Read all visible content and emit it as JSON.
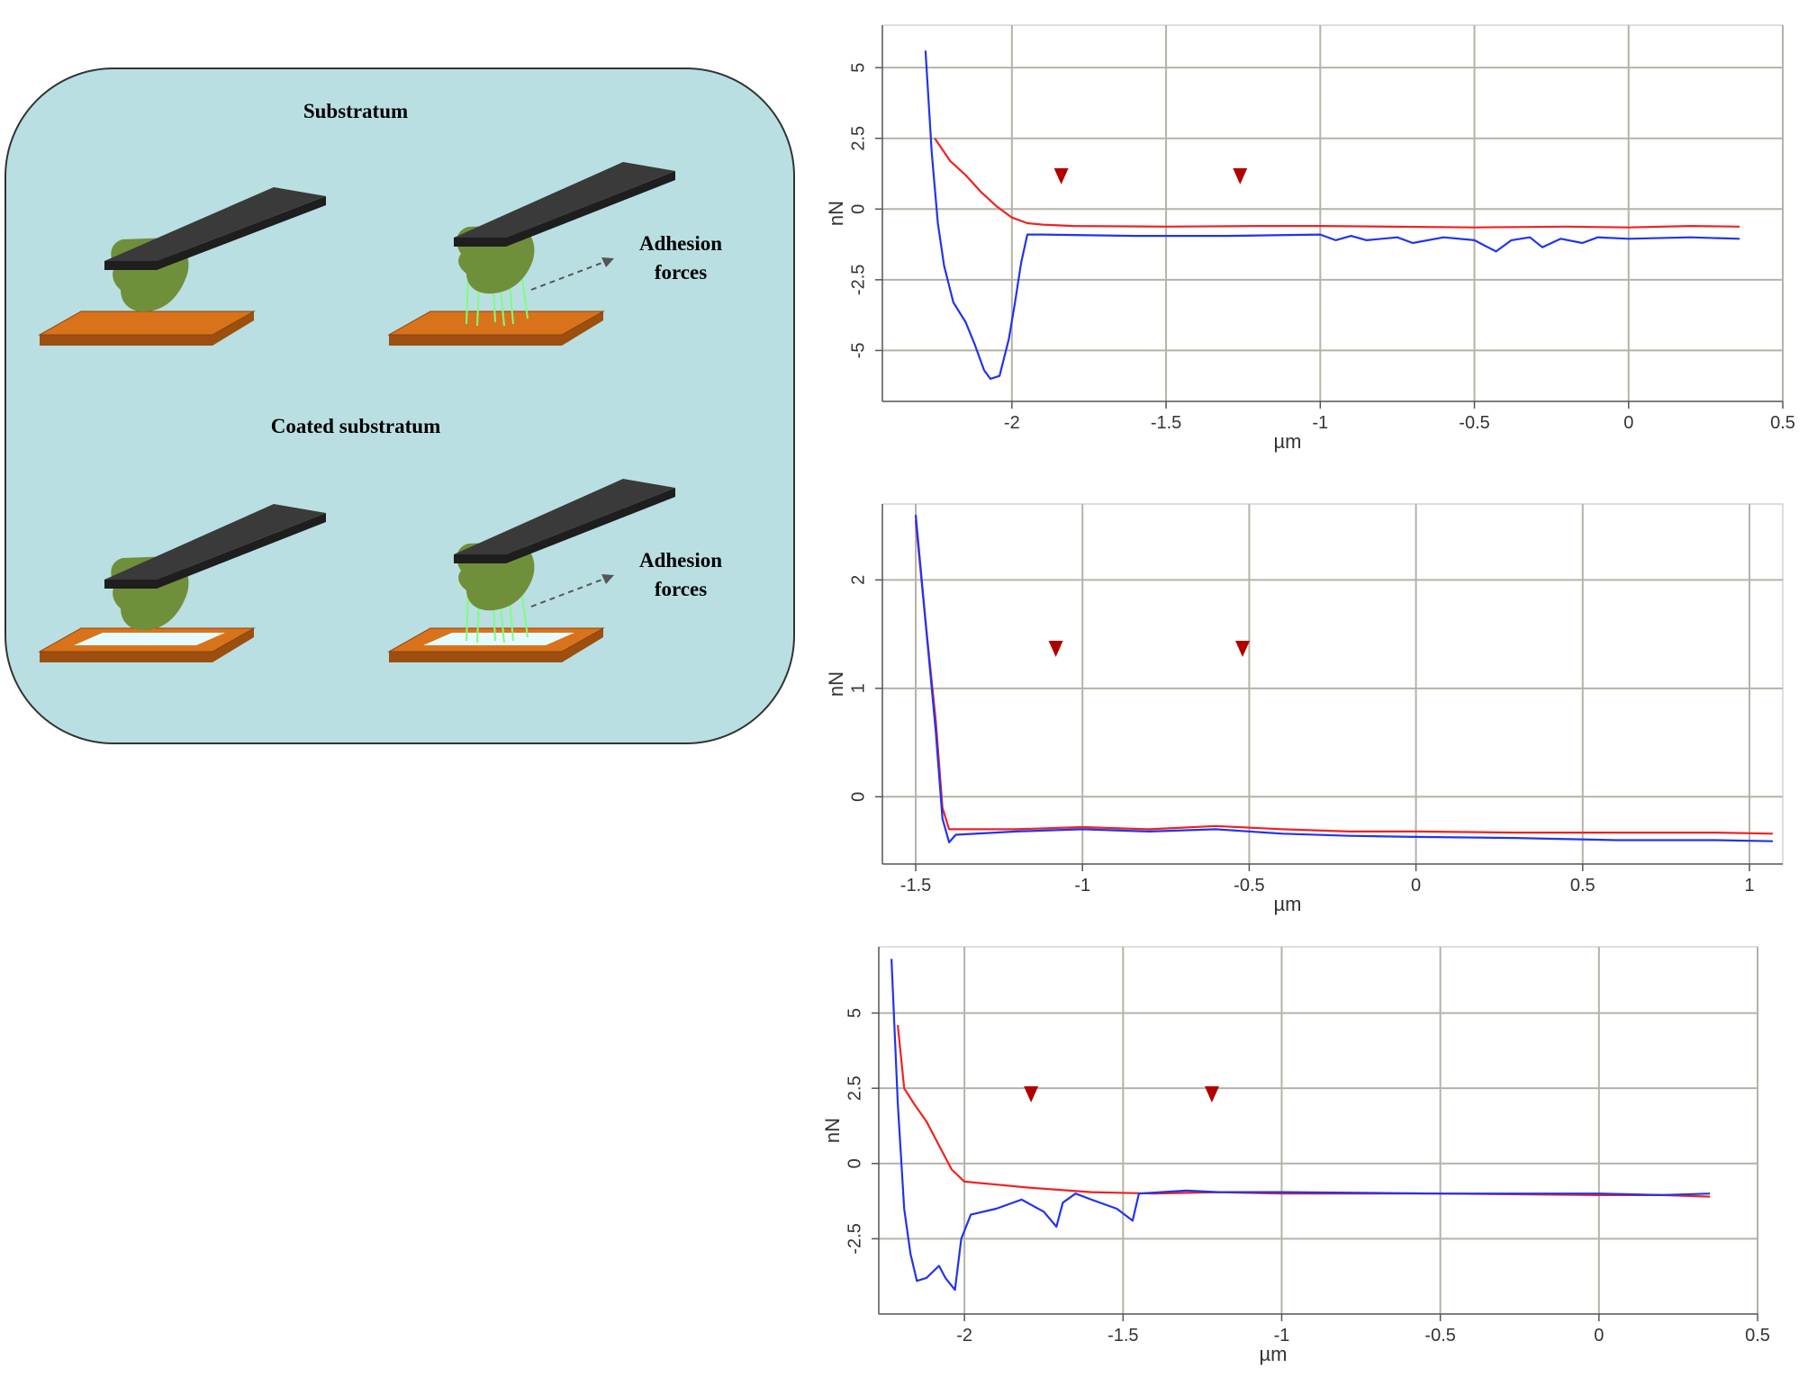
{
  "diagram": {
    "substratum_label": "Substratum",
    "coated_label": "Coated substratum",
    "adhesion_line1": "Adhesion",
    "adhesion_line2": "forces",
    "colors": {
      "panel_bg": "#b9dfe2",
      "cantilever": "#3a3a3a",
      "cell": "#6f8f3a",
      "substrate": "#d9731b",
      "coating": "#e6fbff",
      "fibers": "#7dff7d"
    }
  },
  "chart_data": [
    {
      "type": "line",
      "xlabel": "µm",
      "ylabel": "nN",
      "xlim": [
        -2.42,
        0.5
      ],
      "ylim": [
        -6.8,
        6.5
      ],
      "xticks": [
        -2,
        -1.5,
        -1,
        -0.5,
        0,
        0.5
      ],
      "xtick_labels": [
        "-2",
        "-1.5",
        "-1",
        "-0.5",
        "0",
        "0.5"
      ],
      "yticks": [
        -5,
        -2.5,
        0,
        2.5,
        5
      ],
      "ytick_labels": [
        "-5",
        "-2.5",
        "0",
        "2.5",
        "5"
      ],
      "grid": true,
      "markers_x": [
        -1.84,
        -1.26
      ],
      "series": [
        {
          "color": "#ee2222",
          "points": [
            [
              -2.25,
              2.5
            ],
            [
              -2.2,
              1.7
            ],
            [
              -2.15,
              1.2
            ],
            [
              -2.1,
              0.6
            ],
            [
              -2.05,
              0.1
            ],
            [
              -2.0,
              -0.3
            ],
            [
              -1.95,
              -0.5
            ],
            [
              -1.9,
              -0.55
            ],
            [
              -1.8,
              -0.6
            ],
            [
              -1.5,
              -0.62
            ],
            [
              -1.2,
              -0.6
            ],
            [
              -1.0,
              -0.6
            ],
            [
              -0.5,
              -0.65
            ],
            [
              -0.2,
              -0.62
            ],
            [
              0.0,
              -0.65
            ],
            [
              0.2,
              -0.6
            ],
            [
              0.36,
              -0.62
            ]
          ]
        },
        {
          "color": "#2233ee",
          "points": [
            [
              -2.28,
              5.6
            ],
            [
              -2.26,
              2.0
            ],
            [
              -2.24,
              -0.5
            ],
            [
              -2.22,
              -2.0
            ],
            [
              -2.19,
              -3.3
            ],
            [
              -2.15,
              -4.0
            ],
            [
              -2.12,
              -4.8
            ],
            [
              -2.09,
              -5.7
            ],
            [
              -2.07,
              -6.0
            ],
            [
              -2.04,
              -5.9
            ],
            [
              -2.01,
              -4.6
            ],
            [
              -1.99,
              -3.3
            ],
            [
              -1.97,
              -1.9
            ],
            [
              -1.95,
              -0.9
            ],
            [
              -1.9,
              -0.9
            ],
            [
              -1.6,
              -0.95
            ],
            [
              -1.3,
              -0.95
            ],
            [
              -1.0,
              -0.9
            ],
            [
              -0.95,
              -1.1
            ],
            [
              -0.9,
              -0.95
            ],
            [
              -0.85,
              -1.1
            ],
            [
              -0.75,
              -1.0
            ],
            [
              -0.7,
              -1.2
            ],
            [
              -0.6,
              -1.0
            ],
            [
              -0.5,
              -1.1
            ],
            [
              -0.43,
              -1.5
            ],
            [
              -0.38,
              -1.1
            ],
            [
              -0.32,
              -1.0
            ],
            [
              -0.28,
              -1.35
            ],
            [
              -0.22,
              -1.05
            ],
            [
              -0.15,
              -1.2
            ],
            [
              -0.1,
              -1.0
            ],
            [
              0.0,
              -1.05
            ],
            [
              0.2,
              -1.0
            ],
            [
              0.36,
              -1.05
            ]
          ]
        }
      ]
    },
    {
      "type": "line",
      "xlabel": "µm",
      "ylabel": "nN",
      "xlim": [
        -1.6,
        1.1
      ],
      "ylim": [
        -0.62,
        2.7
      ],
      "xticks": [
        -1.5,
        -1,
        -0.5,
        0,
        0.5,
        1
      ],
      "xtick_labels": [
        "-1.5",
        "-1",
        "-0.5",
        "0",
        "0.5",
        "1"
      ],
      "yticks": [
        0,
        1,
        2
      ],
      "ytick_labels": [
        "0",
        "1",
        "2"
      ],
      "grid": true,
      "markers_x": [
        -1.08,
        -0.52
      ],
      "series": [
        {
          "color": "#ee2222",
          "points": [
            [
              -1.5,
              2.55
            ],
            [
              -1.47,
              1.6
            ],
            [
              -1.44,
              0.7
            ],
            [
              -1.42,
              -0.1
            ],
            [
              -1.4,
              -0.3
            ],
            [
              -1.2,
              -0.3
            ],
            [
              -1.0,
              -0.28
            ],
            [
              -0.8,
              -0.3
            ],
            [
              -0.6,
              -0.27
            ],
            [
              -0.4,
              -0.3
            ],
            [
              -0.2,
              -0.32
            ],
            [
              0.0,
              -0.32
            ],
            [
              0.3,
              -0.33
            ],
            [
              0.6,
              -0.33
            ],
            [
              0.9,
              -0.33
            ],
            [
              1.07,
              -0.34
            ]
          ]
        },
        {
          "color": "#2233ee",
          "points": [
            [
              -1.5,
              2.6
            ],
            [
              -1.47,
              1.6
            ],
            [
              -1.44,
              0.6
            ],
            [
              -1.42,
              -0.2
            ],
            [
              -1.4,
              -0.42
            ],
            [
              -1.38,
              -0.35
            ],
            [
              -1.2,
              -0.32
            ],
            [
              -1.0,
              -0.3
            ],
            [
              -0.8,
              -0.32
            ],
            [
              -0.6,
              -0.3
            ],
            [
              -0.4,
              -0.34
            ],
            [
              -0.2,
              -0.36
            ],
            [
              0.0,
              -0.37
            ],
            [
              0.3,
              -0.38
            ],
            [
              0.6,
              -0.4
            ],
            [
              0.9,
              -0.4
            ],
            [
              1.07,
              -0.41
            ]
          ]
        }
      ]
    },
    {
      "type": "line",
      "xlabel": "µm",
      "ylabel": "nN",
      "xlim": [
        -2.27,
        0.5
      ],
      "ylim": [
        -5.0,
        7.2
      ],
      "xticks": [
        -2,
        -1.5,
        -1,
        -0.5,
        0,
        0.5
      ],
      "xtick_labels": [
        "-2",
        "-1.5",
        "-1",
        "-0.5",
        "0",
        "0.5"
      ],
      "yticks": [
        -2.5,
        0,
        2.5,
        5
      ],
      "ytick_labels": [
        "-2.5",
        "0",
        "2.5",
        "5"
      ],
      "grid": true,
      "markers_x": [
        -1.79,
        -1.22
      ],
      "series": [
        {
          "color": "#ee2222",
          "points": [
            [
              -2.21,
              4.6
            ],
            [
              -2.19,
              2.5
            ],
            [
              -2.16,
              2.0
            ],
            [
              -2.12,
              1.4
            ],
            [
              -2.08,
              0.6
            ],
            [
              -2.04,
              -0.2
            ],
            [
              -2.0,
              -0.6
            ],
            [
              -1.9,
              -0.7
            ],
            [
              -1.8,
              -0.8
            ],
            [
              -1.6,
              -0.95
            ],
            [
              -1.4,
              -1.0
            ],
            [
              -1.2,
              -0.95
            ],
            [
              -1.0,
              -1.0
            ],
            [
              -0.5,
              -1.0
            ],
            [
              0.0,
              -1.05
            ],
            [
              0.2,
              -1.05
            ],
            [
              0.35,
              -1.1
            ]
          ]
        },
        {
          "color": "#2233ee",
          "points": [
            [
              -2.23,
              6.8
            ],
            [
              -2.21,
              2.0
            ],
            [
              -2.19,
              -1.5
            ],
            [
              -2.17,
              -3.0
            ],
            [
              -2.15,
              -3.9
            ],
            [
              -2.12,
              -3.8
            ],
            [
              -2.08,
              -3.4
            ],
            [
              -2.06,
              -3.8
            ],
            [
              -2.03,
              -4.2
            ],
            [
              -2.01,
              -2.5
            ],
            [
              -1.98,
              -1.7
            ],
            [
              -1.9,
              -1.5
            ],
            [
              -1.82,
              -1.2
            ],
            [
              -1.75,
              -1.6
            ],
            [
              -1.71,
              -2.1
            ],
            [
              -1.69,
              -1.3
            ],
            [
              -1.65,
              -1.0
            ],
            [
              -1.6,
              -1.2
            ],
            [
              -1.52,
              -1.5
            ],
            [
              -1.47,
              -1.9
            ],
            [
              -1.45,
              -1.0
            ],
            [
              -1.3,
              -0.9
            ],
            [
              -1.2,
              -0.95
            ],
            [
              -1.0,
              -0.95
            ],
            [
              -0.5,
              -1.0
            ],
            [
              0.0,
              -1.0
            ],
            [
              0.2,
              -1.05
            ],
            [
              0.35,
              -1.0
            ]
          ]
        }
      ]
    }
  ]
}
